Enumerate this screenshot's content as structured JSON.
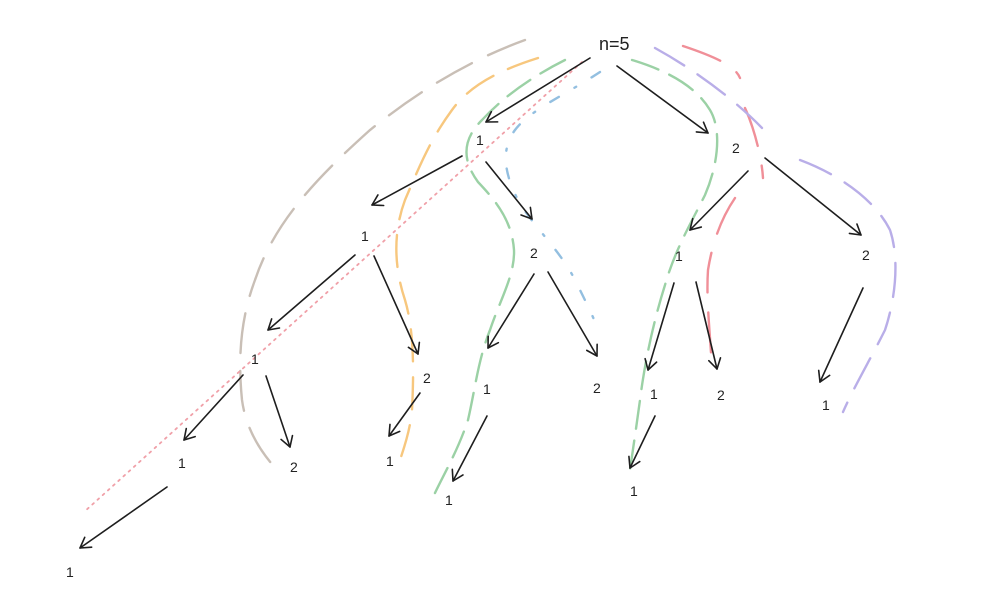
{
  "diagram": {
    "root": {
      "label": "n=5"
    },
    "nodes": [
      {
        "id": "a",
        "label": "1"
      },
      {
        "id": "b",
        "label": "2"
      },
      {
        "id": "aa",
        "label": "1"
      },
      {
        "id": "ab",
        "label": "2"
      },
      {
        "id": "ba",
        "label": "1"
      },
      {
        "id": "bb",
        "label": "2"
      },
      {
        "id": "aaa",
        "label": "1"
      },
      {
        "id": "aab",
        "label": "2"
      },
      {
        "id": "aba",
        "label": "1"
      },
      {
        "id": "abb",
        "label": "2"
      },
      {
        "id": "baa",
        "label": "1"
      },
      {
        "id": "bab",
        "label": "2"
      },
      {
        "id": "bba",
        "label": "1"
      },
      {
        "id": "aaaa",
        "label": "1"
      },
      {
        "id": "aaab",
        "label": "2"
      },
      {
        "id": "aaba",
        "label": "1"
      },
      {
        "id": "abaa",
        "label": "1"
      },
      {
        "id": "baaa",
        "label": "1"
      },
      {
        "id": "aaaaa",
        "label": "1"
      }
    ],
    "path_colors": {
      "taupe": "#c9bfb6",
      "orange": "#f7c77e",
      "green": "#9bd1a5",
      "blue": "#93bfe0",
      "pink": "#f08f98",
      "purple": "#b9aee8",
      "dotted_red": "#f0a0a8"
    }
  }
}
